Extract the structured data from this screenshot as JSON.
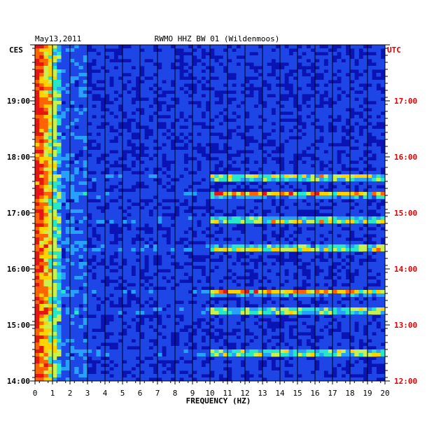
{
  "header": {
    "date": "May13,2011",
    "station": "RWMO HHZ BW 01 (Wildenmoos)"
  },
  "colors": {
    "background": "#0a14b4",
    "grid": "#000000",
    "left_axis_text": "#000000",
    "right_axis_text": "#e00000",
    "colormap": [
      "#00007a",
      "#0a14b4",
      "#1e46e6",
      "#28a0ff",
      "#28e6c8",
      "#c8f050",
      "#ffd200",
      "#ff6400",
      "#e61414"
    ]
  },
  "chart_data": {
    "type": "heatmap",
    "title": "RWMO HHZ BW 01 (Wildenmoos)",
    "xlabel": "FREQUENCY (HZ)",
    "xlim": [
      0,
      20
    ],
    "x_ticks": [
      "0",
      "1",
      "2",
      "3",
      "4",
      "5",
      "6",
      "7",
      "8",
      "9",
      "10",
      "11",
      "12",
      "13",
      "14",
      "15",
      "16",
      "17",
      "18",
      "19",
      "20"
    ],
    "left_axis": {
      "label": "CES",
      "ticks": [
        "19:00",
        "18:00",
        "17:00",
        "16:00",
        "15:00",
        "14:00"
      ]
    },
    "right_axis": {
      "label": "UTC",
      "ticks": [
        "17:00",
        "16:00",
        "15:00",
        "14:00",
        "13:00",
        "12:00"
      ]
    },
    "time_range_utc": [
      "12:00",
      "18:00"
    ],
    "grid_x": true,
    "energy_concentration_hz": [
      0,
      1.5
    ],
    "strong_band_times_utc": [
      "15:38",
      "15:20",
      "14:52",
      "14:22",
      "13:35",
      "13:15",
      "12:30"
    ]
  }
}
